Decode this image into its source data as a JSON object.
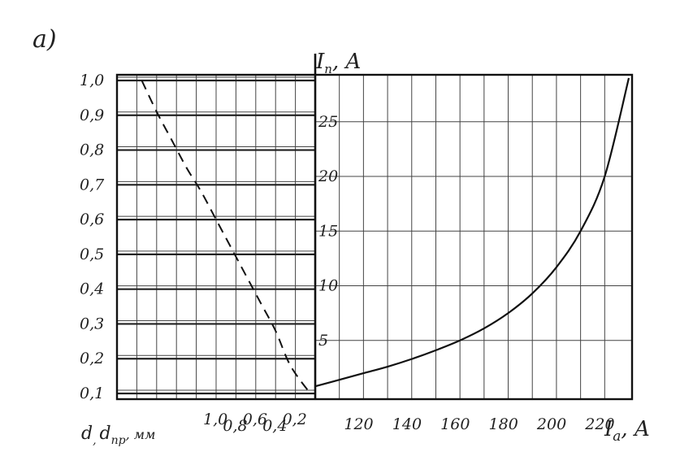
{
  "panel_label": "a)",
  "chart_data": [
    {
      "type": "line",
      "title": "",
      "xlabel": "I_a, A",
      "ylabel": "I_п, A",
      "xlabel_main": "I",
      "xlabel_sub": "a",
      "xlabel_unit": ", A",
      "ylabel_main": "I",
      "ylabel_sub": "п",
      "ylabel_unit": ", A",
      "xlim": [
        100,
        230
      ],
      "ylim": [
        0,
        29
      ],
      "x_ticks": [
        {
          "value": 120,
          "label": "120"
        },
        {
          "value": 140,
          "label": "140"
        },
        {
          "value": 160,
          "label": "160"
        },
        {
          "value": 180,
          "label": "180"
        },
        {
          "value": 200,
          "label": "200"
        },
        {
          "value": 220,
          "label": "220"
        }
      ],
      "y_ticks": [
        {
          "value": 5,
          "label": "5"
        },
        {
          "value": 10,
          "label": "10"
        },
        {
          "value": 15,
          "label": "15"
        },
        {
          "value": 20,
          "label": "20"
        },
        {
          "value": 25,
          "label": "25"
        }
      ],
      "grid": true,
      "series": [
        {
          "style": "solid",
          "x": [
            100,
            110,
            120,
            130,
            140,
            150,
            160,
            170,
            180,
            190,
            200,
            210,
            220,
            230
          ],
          "y": [
            0.8,
            1.4,
            2.0,
            2.6,
            3.3,
            4.1,
            5.0,
            6.1,
            7.5,
            9.3,
            11.7,
            15.0,
            20.0,
            29.0
          ]
        }
      ]
    },
    {
      "type": "line",
      "title": "",
      "xlabel": "d, d_пр, мм",
      "xlabel_main": "d",
      "xlabel_sub1": ",",
      "xlabel_main2": "d",
      "xlabel_sub2": "пр",
      "xlabel_unit": ", мм",
      "ylabel": "",
      "x_reversed": true,
      "x_ticks": [
        {
          "value": 1.0,
          "label": "1,0"
        },
        {
          "value": 0.8,
          "label": "0,8"
        },
        {
          "value": 0.6,
          "label": "0,6"
        },
        {
          "value": 0.4,
          "label": "0,4"
        },
        {
          "value": 0.2,
          "label": "0,2"
        }
      ],
      "y_ticks": [
        {
          "value": 0.1,
          "label": "0,1"
        },
        {
          "value": 0.2,
          "label": "0,2"
        },
        {
          "value": 0.3,
          "label": "0,3"
        },
        {
          "value": 0.4,
          "label": "0,4"
        },
        {
          "value": 0.5,
          "label": "0,5"
        },
        {
          "value": 0.6,
          "label": "0,6"
        },
        {
          "value": 0.7,
          "label": "0,7"
        },
        {
          "value": 0.8,
          "label": "0,8"
        },
        {
          "value": 0.9,
          "label": "0,9"
        },
        {
          "value": 1.0,
          "label": "1,0"
        }
      ],
      "ylim": [
        0.1,
        1.0
      ],
      "grid": true,
      "series": [
        {
          "style": "dashed",
          "x": [
            1.75,
            1.6,
            1.45,
            1.3,
            1.15,
            1.0,
            0.85,
            0.7,
            0.55,
            0.4,
            0.25,
            0.05
          ],
          "y": [
            1.0,
            0.91,
            0.83,
            0.75,
            0.68,
            0.6,
            0.52,
            0.44,
            0.36,
            0.28,
            0.18,
            0.1
          ]
        }
      ]
    }
  ]
}
